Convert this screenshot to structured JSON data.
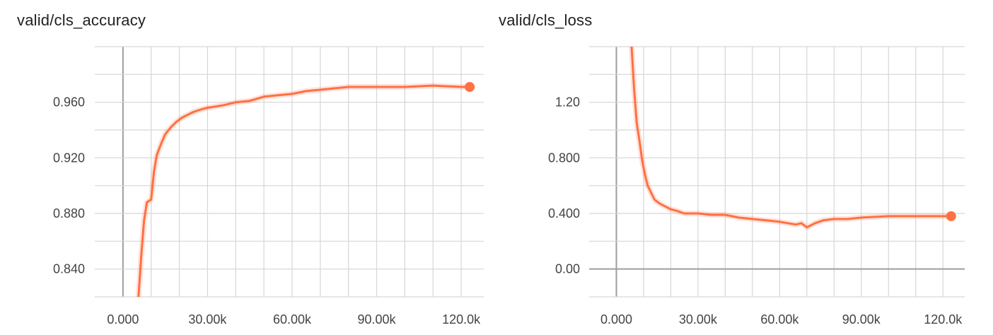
{
  "chart_data": [
    {
      "type": "line",
      "title": "valid/cls_accuracy",
      "xlim": [
        -10000,
        128000
      ],
      "ylim": [
        0.82,
        1.0
      ],
      "x_ticks": [
        0,
        10000,
        20000,
        30000,
        40000,
        50000,
        60000,
        70000,
        80000,
        90000,
        100000,
        110000,
        120000
      ],
      "x_tick_labels": [
        {
          "value": 0,
          "label": "0.000"
        },
        {
          "value": 30000,
          "label": "30.00k"
        },
        {
          "value": 60000,
          "label": "60.00k"
        },
        {
          "value": 90000,
          "label": "90.00k"
        },
        {
          "value": 120000,
          "label": "120.0k"
        }
      ],
      "y_ticks": [
        0.82,
        0.84,
        0.86,
        0.88,
        0.9,
        0.92,
        0.94,
        0.96,
        0.98,
        1.0
      ],
      "y_tick_labels": [
        {
          "value": 0.84,
          "label": "0.840"
        },
        {
          "value": 0.88,
          "label": "0.880"
        },
        {
          "value": 0.92,
          "label": "0.920"
        },
        {
          "value": 0.96,
          "label": "0.960"
        }
      ],
      "grid": true,
      "color": "#ff7043",
      "series": [
        {
          "x": [
            5500,
            6500,
            7500,
            8500,
            10000,
            11000,
            12000,
            13500,
            15000,
            17000,
            19000,
            21000,
            23000,
            25000,
            28000,
            30000,
            33000,
            36000,
            40000,
            45000,
            50000,
            55000,
            60000,
            65000,
            70000,
            75000,
            80000,
            90000,
            100000,
            110000,
            120000,
            123000
          ],
          "y": [
            0.82,
            0.85,
            0.875,
            0.888,
            0.89,
            0.91,
            0.922,
            0.93,
            0.937,
            0.942,
            0.946,
            0.949,
            0.951,
            0.953,
            0.955,
            0.956,
            0.957,
            0.958,
            0.96,
            0.961,
            0.964,
            0.965,
            0.966,
            0.968,
            0.969,
            0.97,
            0.971,
            0.971,
            0.971,
            0.972,
            0.971,
            0.971
          ]
        }
      ]
    },
    {
      "type": "line",
      "title": "valid/cls_loss",
      "xlim": [
        -10000,
        128000
      ],
      "ylim": [
        -0.2,
        1.6
      ],
      "x_ticks": [
        0,
        10000,
        20000,
        30000,
        40000,
        50000,
        60000,
        70000,
        80000,
        90000,
        100000,
        110000,
        120000
      ],
      "x_tick_labels": [
        {
          "value": 0,
          "label": "0.000"
        },
        {
          "value": 30000,
          "label": "30.00k"
        },
        {
          "value": 60000,
          "label": "60.00k"
        },
        {
          "value": 90000,
          "label": "90.00k"
        },
        {
          "value": 120000,
          "label": "120.0k"
        }
      ],
      "y_ticks": [
        -0.2,
        0.0,
        0.2,
        0.4,
        0.6,
        0.8,
        1.0,
        1.2,
        1.4,
        1.6
      ],
      "y_tick_labels": [
        {
          "value": 0.0,
          "label": "0.00"
        },
        {
          "value": 0.4,
          "label": "0.400"
        },
        {
          "value": 0.8,
          "label": "0.800"
        },
        {
          "value": 1.2,
          "label": "1.20"
        }
      ],
      "grid": true,
      "color": "#ff7043",
      "series": [
        {
          "x": [
            5600,
            6500,
            7500,
            8500,
            9500,
            10500,
            11500,
            12500,
            14000,
            16000,
            18000,
            20000,
            22000,
            25000,
            30000,
            35000,
            40000,
            45000,
            50000,
            55000,
            60000,
            63000,
            66000,
            68000,
            70000,
            73000,
            76000,
            80000,
            85000,
            90000,
            100000,
            110000,
            120000,
            123000
          ],
          "y": [
            1.6,
            1.3,
            1.05,
            0.92,
            0.78,
            0.68,
            0.6,
            0.56,
            0.5,
            0.47,
            0.45,
            0.43,
            0.42,
            0.4,
            0.4,
            0.39,
            0.39,
            0.37,
            0.36,
            0.35,
            0.34,
            0.33,
            0.32,
            0.33,
            0.3,
            0.33,
            0.35,
            0.36,
            0.36,
            0.37,
            0.38,
            0.38,
            0.38,
            0.38
          ]
        }
      ]
    }
  ]
}
